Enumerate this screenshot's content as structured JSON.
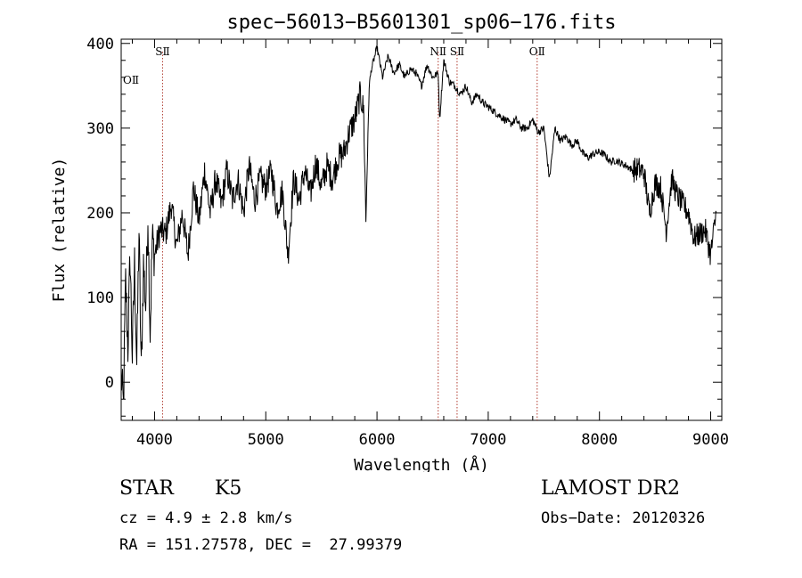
{
  "chart_data": {
    "type": "line",
    "title": "spec−56013−B5601301_sp06−176.fits",
    "xlabel": "Wavelength (Å)",
    "ylabel": "Flux (relative)",
    "xlim": [
      3700,
      9100
    ],
    "ylim": [
      -45,
      405
    ],
    "x_ticks": [
      4000,
      5000,
      6000,
      7000,
      8000,
      9000
    ],
    "y_ticks": [
      0,
      100,
      200,
      300,
      400
    ],
    "grid": false,
    "series": [
      {
        "x": [
          3700,
          3720,
          3740,
          3760,
          3780,
          3800,
          3820,
          3840,
          3860,
          3880,
          3900,
          3920,
          3940,
          3960,
          3980,
          4000,
          4050,
          4100,
          4150,
          4200,
          4250,
          4300,
          4350,
          4400,
          4450,
          4500,
          4550,
          4600,
          4650,
          4700,
          4750,
          4800,
          4850,
          4900,
          4950,
          5000,
          5050,
          5100,
          5150,
          5200,
          5250,
          5300,
          5350,
          5400,
          5450,
          5500,
          5550,
          5600,
          5650,
          5700,
          5750,
          5800,
          5850,
          5880,
          5900,
          5930,
          5950,
          6000,
          6050,
          6100,
          6150,
          6200,
          6250,
          6300,
          6350,
          6400,
          6450,
          6500,
          6550,
          6563,
          6600,
          6650,
          6700,
          6750,
          6800,
          6850,
          6900,
          6950,
          7000,
          7050,
          7100,
          7150,
          7200,
          7250,
          7300,
          7350,
          7400,
          7450,
          7500,
          7550,
          7600,
          7650,
          7700,
          7750,
          7800,
          7850,
          7900,
          7950,
          8000,
          8050,
          8100,
          8150,
          8200,
          8250,
          8300,
          8350,
          8400,
          8450,
          8500,
          8550,
          8600,
          8650,
          8700,
          8750,
          8800,
          8850,
          8900,
          8950,
          9000,
          9050
        ],
        "y": [
          10,
          -30,
          120,
          40,
          150,
          30,
          140,
          20,
          180,
          10,
          140,
          90,
          200,
          60,
          170,
          150,
          180,
          175,
          210,
          160,
          200,
          150,
          230,
          190,
          250,
          200,
          240,
          210,
          250,
          215,
          240,
          200,
          255,
          215,
          240,
          230,
          250,
          205,
          225,
          150,
          240,
          215,
          250,
          220,
          260,
          230,
          255,
          240,
          265,
          270,
          295,
          310,
          340,
          320,
          190,
          350,
          370,
          395,
          360,
          385,
          365,
          375,
          360,
          370,
          365,
          350,
          375,
          360,
          365,
          310,
          380,
          355,
          350,
          340,
          350,
          330,
          340,
          330,
          325,
          320,
          315,
          310,
          305,
          310,
          300,
          300,
          310,
          295,
          300,
          240,
          300,
          285,
          290,
          280,
          285,
          270,
          265,
          270,
          272,
          268,
          260,
          262,
          258,
          255,
          250,
          252,
          248,
          200,
          235,
          230,
          180,
          240,
          220,
          210,
          200,
          170,
          175,
          180,
          150,
          200
        ]
      }
    ],
    "lines": [
      {
        "label": "SⅡ",
        "x": 4072
      },
      {
        "label": "NⅡ",
        "x": 6550
      },
      {
        "label": "SⅡ",
        "x": 6720
      },
      {
        "label": "OⅡ",
        "x": 7440
      }
    ],
    "line_labels_unplaced": [
      {
        "label": "OⅡ"
      }
    ],
    "colors": {
      "spectrum": "#000000",
      "emission_lines": "#b03a2e"
    }
  },
  "info": {
    "object_class": "STAR",
    "subclass": "K5",
    "survey": "LAMOST DR2",
    "cz": "cz = 4.9 ± 2.8 km/s",
    "obs_date": "Obs−Date: 20120326",
    "radec": "RA = 151.27578, DEC =  27.99379"
  }
}
